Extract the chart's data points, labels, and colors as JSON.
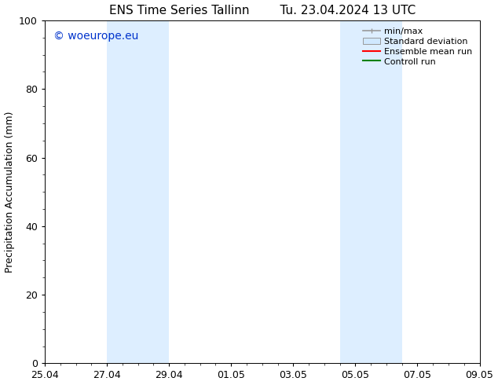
{
  "title_left": "ENS Time Series Tallinn",
  "title_right": "Tu. 23.04.2024 13 UTC",
  "ylabel": "Precipitation Accumulation (mm)",
  "ylim": [
    0,
    100
  ],
  "yticks": [
    0,
    20,
    40,
    60,
    80,
    100
  ],
  "xlim": [
    0,
    14
  ],
  "background_color": "#ffffff",
  "plot_bg_color": "#ffffff",
  "watermark": "© woeurope.eu",
  "watermark_color": "#0033cc",
  "shade_color": "#ddeeff",
  "shade_bands": [
    {
      "x_start": 2.0,
      "x_end": 4.0
    },
    {
      "x_start": 9.5,
      "x_end": 11.5
    }
  ],
  "xtick_labels": [
    "25.04",
    "27.04",
    "29.04",
    "01.05",
    "03.05",
    "05.05",
    "07.05",
    "09.05"
  ],
  "xtick_positions": [
    0,
    2,
    4,
    6,
    8,
    10,
    12,
    14
  ],
  "legend_labels": [
    "min/max",
    "Standard deviation",
    "Ensemble mean run",
    "Controll run"
  ],
  "minmax_color": "#999999",
  "std_facecolor": "#d0e8ff",
  "std_edgecolor": "#999999",
  "ensemble_color": "#ff0000",
  "control_color": "#008000",
  "tick_fontsize": 9,
  "ylabel_fontsize": 9,
  "title_fontsize": 11,
  "legend_fontsize": 8,
  "watermark_fontsize": 10
}
